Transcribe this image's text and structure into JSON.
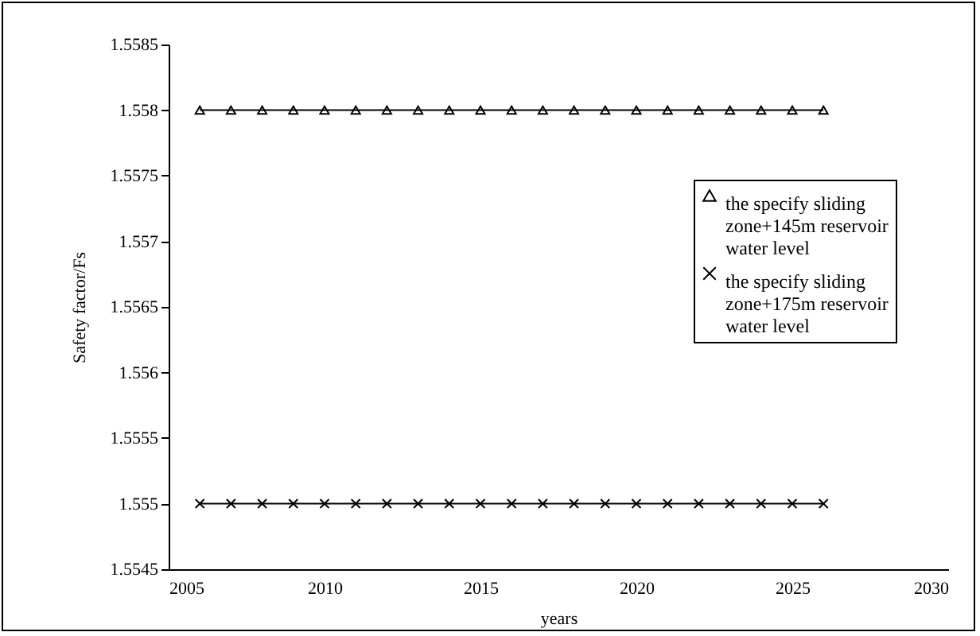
{
  "chart_data": {
    "type": "line",
    "xlabel": "years",
    "ylabel": "Safety factor/Fs",
    "x": [
      2006,
      2007,
      2008,
      2009,
      2010,
      2011,
      2012,
      2013,
      2014,
      2015,
      2016,
      2017,
      2018,
      2019,
      2020,
      2021,
      2022,
      2023,
      2024,
      2025,
      2026
    ],
    "series": [
      {
        "name": "the specify sliding zone+145m reservoir water level",
        "color": "#000000",
        "marker": "triangle",
        "values": [
          1.558,
          1.558,
          1.558,
          1.558,
          1.558,
          1.558,
          1.558,
          1.558,
          1.558,
          1.558,
          1.558,
          1.558,
          1.558,
          1.558,
          1.558,
          1.558,
          1.558,
          1.558,
          1.558,
          1.558,
          1.558
        ]
      },
      {
        "name": "the specify sliding zone+175m reservoir water level",
        "color": "#000000",
        "marker": "cross",
        "values": [
          1.555,
          1.555,
          1.555,
          1.555,
          1.555,
          1.555,
          1.555,
          1.555,
          1.555,
          1.555,
          1.555,
          1.555,
          1.555,
          1.555,
          1.555,
          1.555,
          1.555,
          1.555,
          1.555,
          1.555,
          1.555
        ]
      }
    ],
    "xlim": [
      2005,
      2030
    ],
    "xticks": [
      2005,
      2010,
      2015,
      2020,
      2025,
      2030
    ],
    "ylim": [
      1.5545,
      1.5585
    ],
    "yticks": [
      1.5545,
      1.555,
      1.5555,
      1.556,
      1.5565,
      1.557,
      1.5575,
      1.558,
      1.5585
    ],
    "grid": false,
    "legend": "right",
    "line_style": "solid"
  }
}
